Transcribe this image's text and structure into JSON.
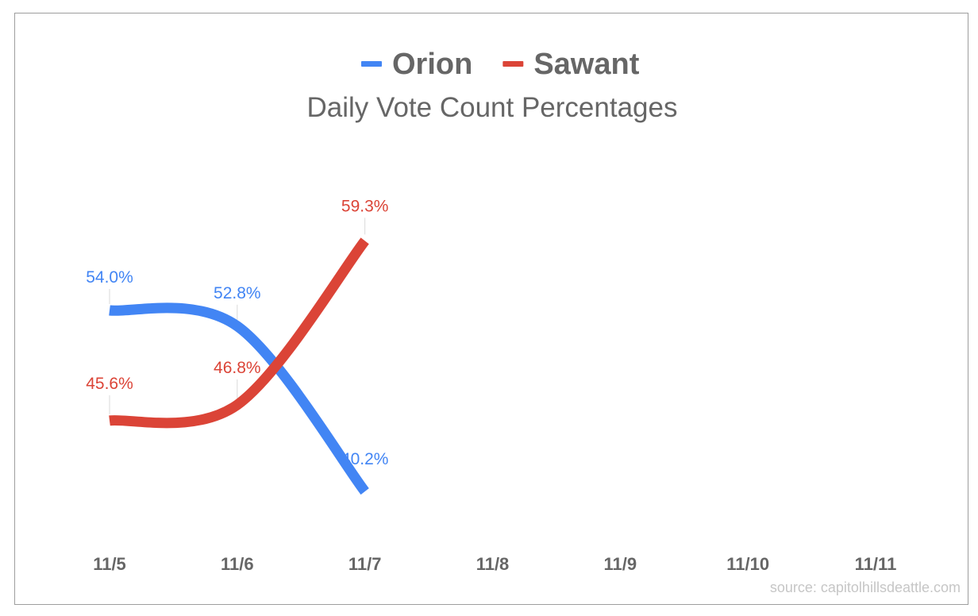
{
  "chart_data": {
    "type": "line",
    "title": "Daily Vote Count Percentages",
    "categories": [
      "11/5",
      "11/6",
      "11/7",
      "11/8",
      "11/9",
      "11/10",
      "11/11"
    ],
    "series": [
      {
        "name": "Orion",
        "color": "#4285f4",
        "values": [
          54.0,
          52.8,
          40.2,
          null,
          null,
          null,
          null
        ],
        "labels": [
          "54.0%",
          "52.8%",
          "40.2%"
        ]
      },
      {
        "name": "Sawant",
        "color": "#db4437",
        "values": [
          45.6,
          46.8,
          59.3,
          null,
          null,
          null,
          null
        ],
        "labels": [
          "45.6%",
          "46.8%",
          "59.3%"
        ]
      }
    ],
    "legend_position": "top",
    "grid": false,
    "source": "source: capitolhillsdeattle.com"
  }
}
